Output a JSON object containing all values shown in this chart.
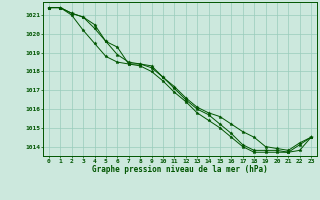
{
  "title": "Graphe pression niveau de la mer (hPa)",
  "bg_color": "#cce8dd",
  "grid_color": "#99ccbb",
  "line_color": "#005500",
  "marker_color": "#005500",
  "x_min": -0.5,
  "x_max": 23.5,
  "y_min": 1013.5,
  "y_max": 1021.7,
  "y_ticks": [
    1014,
    1015,
    1016,
    1017,
    1018,
    1019,
    1020,
    1021
  ],
  "x_ticks": [
    0,
    1,
    2,
    3,
    4,
    5,
    6,
    7,
    8,
    9,
    10,
    11,
    12,
    13,
    14,
    15,
    16,
    17,
    18,
    19,
    20,
    21,
    22,
    23
  ],
  "series1": [
    1021.4,
    1021.4,
    1021.1,
    1020.9,
    1020.3,
    1019.6,
    1019.3,
    1018.4,
    1018.4,
    1018.3,
    1017.7,
    1017.2,
    1016.6,
    1016.1,
    1015.8,
    1015.6,
    1015.2,
    1014.8,
    1014.5,
    1014.0,
    1013.9,
    1013.8,
    1014.2,
    1014.5
  ],
  "series2": [
    1021.4,
    1021.4,
    1021.0,
    1020.2,
    1019.5,
    1018.8,
    1018.5,
    1018.4,
    1018.3,
    1018.0,
    1017.5,
    1016.9,
    1016.4,
    1015.8,
    1015.4,
    1015.0,
    1014.5,
    1014.0,
    1013.7,
    1013.7,
    1013.7,
    1013.7,
    1013.8,
    1014.5
  ],
  "series3": [
    1021.4,
    1021.4,
    1021.1,
    1020.9,
    1020.5,
    1019.6,
    1018.9,
    1018.5,
    1018.4,
    1018.2,
    1017.7,
    1017.1,
    1016.5,
    1016.0,
    1015.7,
    1015.2,
    1014.7,
    1014.1,
    1013.8,
    1013.8,
    1013.8,
    1013.7,
    1014.1,
    1014.5
  ]
}
